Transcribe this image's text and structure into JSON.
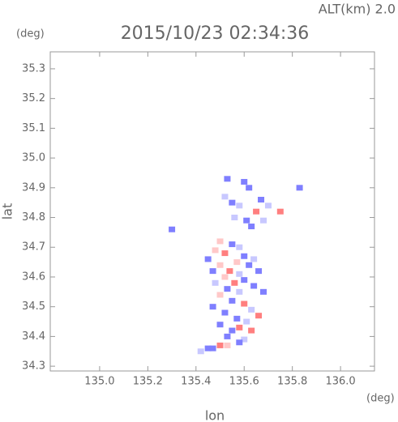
{
  "chart_data": {
    "type": "scatter",
    "title": "2015/10/23 02:34:36",
    "subtitle": "ALT(km) 2.0",
    "y_unit": "(deg)",
    "x_unit": "(deg)",
    "x_label": "lon",
    "y_label": "lat",
    "xlim": [
      134.795,
      136.141
    ],
    "ylim": [
      34.284,
      35.357
    ],
    "xticks": [
      {
        "value": 135,
        "label": "135.0"
      },
      135.2,
      135.4,
      135.6,
      135.8,
      {
        "value": 136,
        "label": "136.0"
      }
    ],
    "yticks": [
      35.3,
      35.2,
      35.1,
      {
        "value": 35,
        "label": "35.0"
      },
      34.9,
      34.8,
      34.7,
      34.6,
      34.5,
      34.4,
      34.3
    ],
    "palette": [
      "#7f7fff",
      "#c8c8ff",
      "#ff7f7f",
      "#ffc8c8"
    ],
    "x": [
      135.53,
      135.6,
      135.62,
      135.52,
      135.55,
      135.58,
      135.67,
      135.7,
      135.65,
      135.61,
      135.56,
      135.75,
      135.83,
      135.3,
      135.63,
      135.68,
      135.5,
      135.55,
      135.58,
      135.48,
      135.52,
      135.6,
      135.64,
      135.45,
      135.57,
      135.62,
      135.5,
      135.47,
      135.54,
      135.58,
      135.66,
      135.52,
      135.56,
      135.6,
      135.48,
      135.64,
      135.53,
      135.58,
      135.68,
      135.5,
      135.55,
      135.6,
      135.47,
      135.63,
      135.66,
      135.52,
      135.57,
      135.61,
      135.5,
      135.55,
      135.58,
      135.63,
      135.53,
      135.6,
      135.5,
      135.45,
      135.47,
      135.42,
      135.53,
      135.58
    ],
    "values": [
      34.93,
      34.92,
      34.9,
      34.87,
      34.85,
      34.84,
      34.86,
      34.84,
      34.82,
      34.79,
      34.8,
      34.82,
      34.9,
      34.76,
      34.77,
      34.79,
      34.72,
      34.71,
      34.7,
      34.69,
      34.68,
      34.67,
      34.66,
      34.66,
      34.65,
      34.64,
      34.64,
      34.62,
      34.62,
      34.61,
      34.62,
      34.6,
      34.58,
      34.59,
      34.58,
      34.57,
      34.56,
      34.55,
      34.55,
      34.54,
      34.52,
      34.51,
      34.5,
      34.49,
      34.47,
      34.48,
      34.46,
      34.45,
      34.44,
      34.42,
      34.43,
      34.42,
      34.4,
      34.39,
      34.37,
      34.36,
      34.36,
      34.35,
      34.37,
      34.38
    ],
    "color_index": [
      0,
      0,
      0,
      1,
      0,
      1,
      0,
      1,
      2,
      0,
      1,
      2,
      0,
      0,
      0,
      1,
      3,
      0,
      1,
      3,
      2,
      0,
      1,
      0,
      3,
      0,
      3,
      0,
      2,
      1,
      0,
      3,
      2,
      0,
      1,
      0,
      0,
      1,
      0,
      3,
      0,
      2,
      0,
      1,
      2,
      0,
      0,
      1,
      0,
      0,
      2,
      2,
      0,
      1,
      2,
      0,
      0,
      1,
      3,
      0
    ]
  }
}
